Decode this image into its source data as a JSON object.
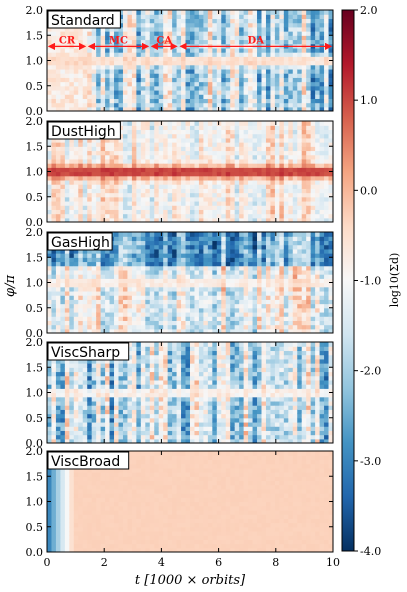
{
  "chart_data": [
    {
      "type": "heatmap",
      "panel_label": "Standard",
      "xlim": [
        0,
        10
      ],
      "ylim": [
        0.0,
        2.0
      ],
      "y_ticks": [
        "0.0",
        "0.5",
        "1.0",
        "1.5",
        "2.0"
      ],
      "show_x_ticklabels": false,
      "signature": {
        "ring_phi": 1.0,
        "ring_width": 0.07,
        "ring_value": -0.3,
        "background": "mixed",
        "annotations": [
          {
            "label": "CR",
            "x_start": 0.0,
            "x_end": 1.4
          },
          {
            "label": "MC",
            "x_start": 1.4,
            "x_end": 3.6
          },
          {
            "label": "CA",
            "x_start": 3.6,
            "x_end": 4.6
          },
          {
            "label": "DA",
            "x_start": 4.6,
            "x_end": 10.0
          }
        ]
      }
    },
    {
      "type": "heatmap",
      "panel_label": "DustHigh",
      "xlim": [
        0,
        10
      ],
      "ylim": [
        0.0,
        2.0
      ],
      "y_ticks": [
        "0.0",
        "0.5",
        "1.0",
        "1.5",
        "2.0"
      ],
      "show_x_ticklabels": false,
      "signature": {
        "ring_phi": 1.0,
        "ring_width": 0.1,
        "ring_value": 1.2,
        "background": "light-blue streaky"
      }
    },
    {
      "type": "heatmap",
      "panel_label": "GasHigh",
      "xlim": [
        0,
        10
      ],
      "ylim": [
        0.0,
        2.0
      ],
      "y_ticks": [
        "0.0",
        "0.5",
        "1.0",
        "1.5",
        "2.0"
      ],
      "show_x_ticklabels": false,
      "signature": {
        "ring_phi": 1.0,
        "ring_width": 0.05,
        "ring_value": -0.5,
        "background": "dark-blue top"
      }
    },
    {
      "type": "heatmap",
      "panel_label": "ViscSharp",
      "xlim": [
        0,
        10
      ],
      "ylim": [
        0.0,
        2.0
      ],
      "y_ticks": [
        "0.0",
        "0.5",
        "1.0",
        "1.5",
        "2.0"
      ],
      "show_x_ticklabels": false,
      "signature": {
        "ring_phi": 1.0,
        "ring_width": 0.05,
        "ring_value": -0.5,
        "background": "mixed"
      }
    },
    {
      "type": "heatmap",
      "panel_label": "ViscBroad",
      "xlim": [
        0,
        10
      ],
      "ylim": [
        0.0,
        2.0
      ],
      "y_ticks": [
        "0.0",
        "0.5",
        "1.0",
        "1.5",
        "2.0"
      ],
      "show_x_ticklabels": true,
      "x_ticks": [
        "0",
        "2",
        "4",
        "6",
        "8",
        "10"
      ],
      "signature": {
        "ring_phi": null,
        "uniform_value": -0.3,
        "early_gradient_end": 0.9
      }
    }
  ],
  "colorbar": {
    "label": "log10(Σd)",
    "range": [
      -4.0,
      2.0
    ],
    "ticks": [
      "2.0",
      "1.0",
      "0.0",
      "-1.0",
      "-2.0",
      "-3.0",
      "-4.0"
    ],
    "colormap": "RdBu_r",
    "colors": [
      "#053061",
      "#2166ac",
      "#4393c3",
      "#92c5de",
      "#d1e5f0",
      "#f7f7f7",
      "#fddbc7",
      "#f4a582",
      "#d6604d",
      "#b2182b",
      "#67001f"
    ]
  },
  "axes": {
    "ylabel": "φ/π",
    "xlabel": "t [1000 × orbits]"
  },
  "phase_arrow_color": "#ff1a1a"
}
